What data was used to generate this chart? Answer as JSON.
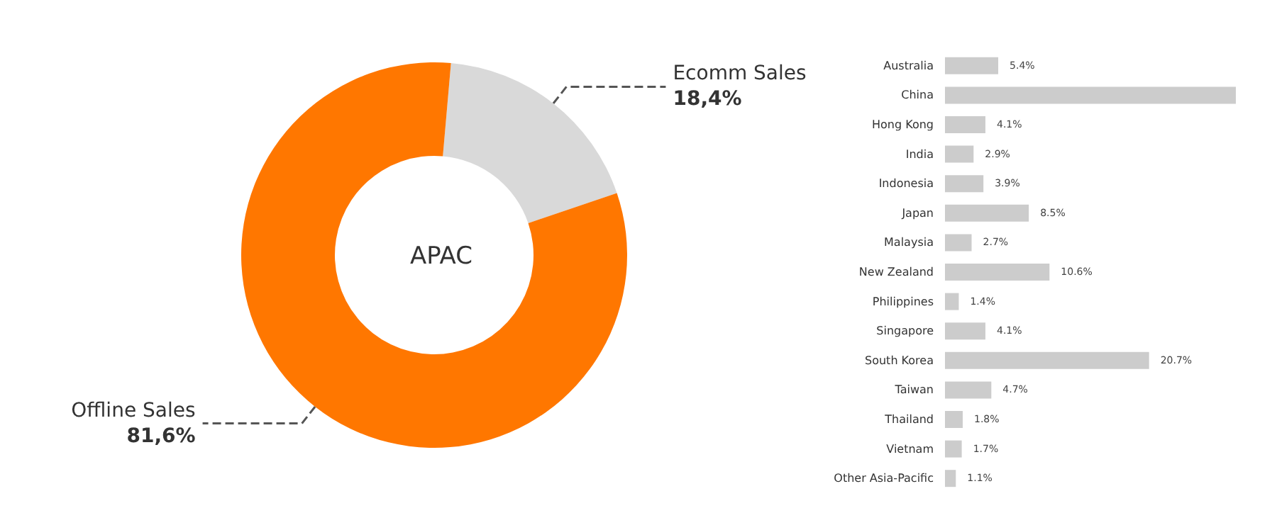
{
  "chart_data": [
    {
      "type": "donut",
      "title": "APAC",
      "categories": [
        "Ecomm Sales",
        "Offline Sales"
      ],
      "values": [
        18.4,
        81.6
      ],
      "colors": [
        "#d9d9d9",
        "#ff7700"
      ],
      "value_labels": [
        "18,4%",
        "81,6%"
      ],
      "legend": false
    },
    {
      "type": "bar",
      "orientation": "horizontal",
      "categories": [
        "Australia",
        "China",
        "Hong Kong",
        "India",
        "Indonesia",
        "Japan",
        "Malaysia",
        "New Zealand",
        "Philippines",
        "Singapore",
        "South Korea",
        "Taiwan",
        "Thailand",
        "Vietnam",
        "Other Asia-Pacific"
      ],
      "series": [
        {
          "color": "#cccccc",
          "values": [
            5.4,
            29.5,
            4.1,
            2.9,
            3.9,
            8.5,
            2.7,
            10.6,
            1.4,
            4.1,
            20.7,
            4.7,
            1.8,
            1.7,
            1.1
          ],
          "value_labels": [
            "5.4%",
            null,
            "4.1%",
            "2.9%",
            "3.9%",
            "8.5%",
            "2.7%",
            "10.6%",
            "1.4%",
            "4.1%",
            "20.7%",
            "4.7%",
            "1.8%",
            "1.7%",
            "1.1%"
          ]
        }
      ],
      "legend": false,
      "tick_labels": "y"
    }
  ]
}
